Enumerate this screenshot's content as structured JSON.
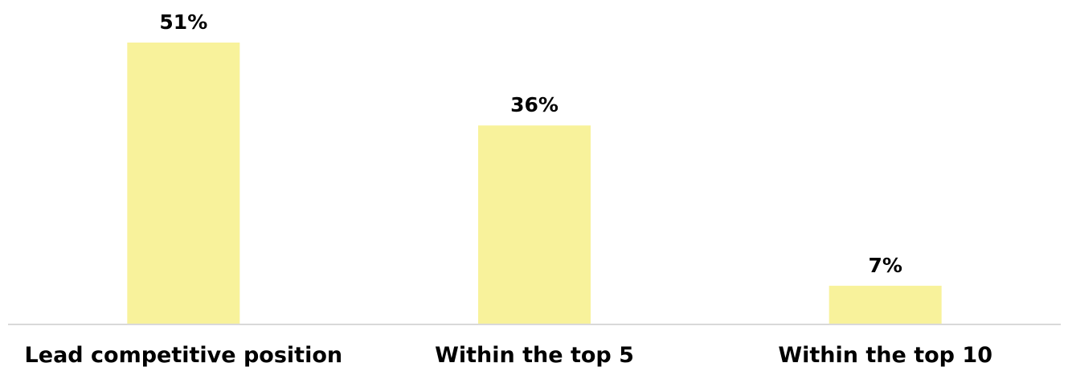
{
  "chart_data": {
    "type": "bar",
    "title": "",
    "xlabel": "",
    "ylabel": "",
    "categories": [
      "Lead competitive position",
      "Within the top 5",
      "Within the top 10"
    ],
    "values": [
      51,
      36,
      7
    ],
    "value_labels": [
      "51%",
      "36%",
      "7%"
    ],
    "ylim": [
      0,
      51
    ],
    "grid": false,
    "legend": "none",
    "bar_color": "#f8f29b",
    "axis_color": "#d9d9d9"
  }
}
